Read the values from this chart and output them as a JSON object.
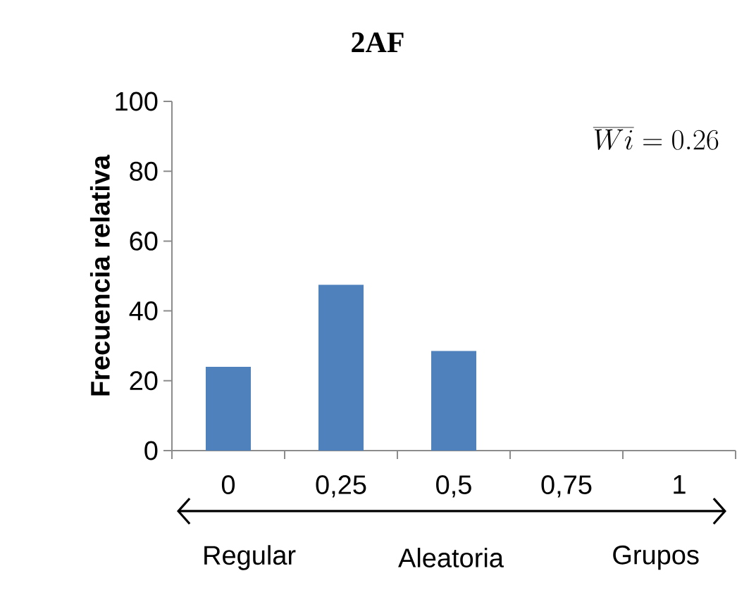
{
  "chart_data": {
    "type": "bar",
    "title": "2AF",
    "ylabel": "Frecuencia relativa",
    "categories": [
      "0",
      "0,25",
      "0,5",
      "0,75",
      "1"
    ],
    "values": [
      24,
      47.5,
      28.5,
      0,
      0
    ],
    "color": "#4f81bd",
    "ylim": [
      0,
      100
    ],
    "yticks": [
      0,
      20,
      40,
      60,
      80,
      100
    ],
    "annotations": [
      "\\overline{Wi} = 0.26",
      "Regular",
      "Aleatoria",
      "Grupos"
    ]
  }
}
